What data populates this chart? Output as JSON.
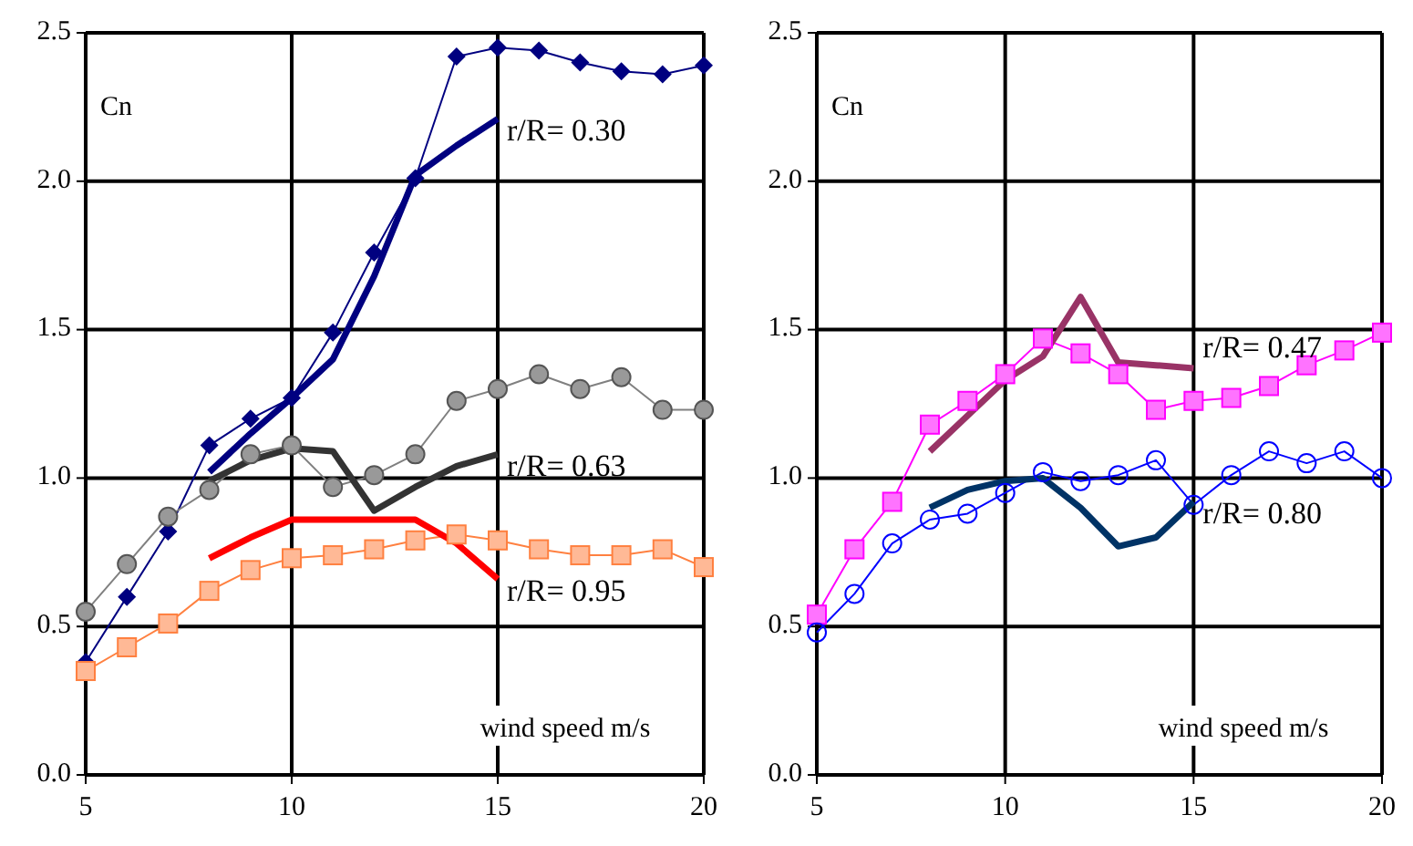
{
  "chart_data": [
    {
      "type": "line",
      "xlabel": "wind speed m/s",
      "ylabel": "Cn",
      "xlim": [
        5,
        20
      ],
      "ylim": [
        0,
        2.5
      ],
      "xticks": [
        5,
        10,
        15,
        20
      ],
      "yticks": [
        {
          "value": 0,
          "label": "0.0"
        },
        {
          "value": 0.5,
          "label": "0.5"
        },
        {
          "value": 1,
          "label": "1.0"
        },
        {
          "value": 1.5,
          "label": "1.5"
        },
        {
          "value": 2,
          "label": "2.0"
        },
        {
          "value": 2.5,
          "label": "2.5"
        }
      ],
      "grid": true,
      "series": [
        {
          "color": "#000080",
          "marker": "diamond",
          "x": [
            5,
            6,
            7,
            8,
            9,
            10,
            11,
            12,
            13,
            14,
            15,
            16,
            17,
            18,
            19,
            20
          ],
          "values": [
            0.38,
            0.6,
            0.82,
            1.11,
            1.2,
            1.27,
            1.49,
            1.76,
            2.01,
            2.42,
            2.45,
            2.44,
            2.4,
            2.37,
            2.36,
            2.39
          ]
        },
        {
          "name": "r/R= 0.30",
          "color": "#000080",
          "marker": "none",
          "x": [
            8,
            9,
            10,
            11,
            12,
            13,
            14,
            15
          ],
          "values": [
            1.02,
            1.15,
            1.27,
            1.4,
            1.68,
            2.02,
            2.12,
            2.21
          ]
        },
        {
          "color": "#808080",
          "marker": "circle",
          "x": [
            5,
            6,
            7,
            8,
            9,
            10,
            11,
            12,
            13,
            14,
            15,
            16,
            17,
            18,
            19,
            20
          ],
          "values": [
            0.55,
            0.71,
            0.87,
            0.96,
            1.08,
            1.11,
            0.97,
            1.01,
            1.08,
            1.26,
            1.3,
            1.35,
            1.3,
            1.34,
            1.23,
            1.23
          ]
        },
        {
          "name": "r/R= 0.63",
          "color": "#333333",
          "marker": "none",
          "x": [
            8,
            9,
            10,
            11,
            12,
            13,
            14,
            15
          ],
          "values": [
            0.99,
            1.06,
            1.1,
            1.09,
            0.89,
            0.97,
            1.04,
            1.08
          ]
        },
        {
          "color": "#ff8040",
          "marker": "square",
          "x": [
            5,
            6,
            7,
            8,
            9,
            10,
            11,
            12,
            13,
            14,
            15,
            16,
            17,
            18,
            19,
            20
          ],
          "values": [
            0.35,
            0.43,
            0.51,
            0.62,
            0.69,
            0.73,
            0.74,
            0.76,
            0.79,
            0.81,
            0.79,
            0.76,
            0.74,
            0.74,
            0.76,
            0.7
          ]
        },
        {
          "name": "r/R= 0.95",
          "color": "#ff0000",
          "marker": "none",
          "x": [
            8,
            9,
            10,
            11,
            12,
            13,
            14,
            15
          ],
          "values": [
            0.73,
            0.8,
            0.86,
            0.86,
            0.86,
            0.86,
            0.78,
            0.66
          ]
        }
      ]
    },
    {
      "type": "line",
      "xlabel": "wind speed m/s",
      "ylabel": "Cn",
      "xlim": [
        5,
        20
      ],
      "ylim": [
        0,
        2.5
      ],
      "xticks": [
        5,
        10,
        15,
        20
      ],
      "yticks": [
        {
          "value": 0,
          "label": "0.0"
        },
        {
          "value": 0.5,
          "label": "0.5"
        },
        {
          "value": 1,
          "label": "1.0"
        },
        {
          "value": 1.5,
          "label": "1.5"
        },
        {
          "value": 2,
          "label": "2.0"
        },
        {
          "value": 2.5,
          "label": "2.5"
        }
      ],
      "grid": true,
      "series": [
        {
          "color": "#ff00ff",
          "marker": "square",
          "x": [
            5,
            6,
            7,
            8,
            9,
            10,
            11,
            12,
            13,
            14,
            15,
            16,
            17,
            18,
            19,
            20
          ],
          "values": [
            0.54,
            0.76,
            0.92,
            1.18,
            1.26,
            1.35,
            1.47,
            1.42,
            1.35,
            1.23,
            1.26,
            1.27,
            1.31,
            1.38,
            1.43,
            1.49
          ]
        },
        {
          "name": "r/R= 0.47",
          "color": "#993366",
          "marker": "none",
          "x": [
            8,
            9,
            10,
            11,
            12,
            13,
            14,
            15
          ],
          "values": [
            1.09,
            1.21,
            1.33,
            1.41,
            1.61,
            1.39,
            1.38,
            1.37
          ]
        },
        {
          "color": "#0000ff",
          "marker": "circle-open",
          "x": [
            5,
            6,
            7,
            8,
            9,
            10,
            11,
            12,
            13,
            14,
            15,
            16,
            17,
            18,
            19,
            20
          ],
          "values": [
            0.48,
            0.61,
            0.78,
            0.86,
            0.88,
            0.95,
            1.02,
            0.99,
            1.01,
            1.06,
            0.91,
            1.01,
            1.09,
            1.05,
            1.09,
            1.0
          ]
        },
        {
          "name": "r/R= 0.80",
          "color": "#003366",
          "marker": "none",
          "x": [
            8,
            9,
            10,
            11,
            12,
            13,
            14,
            15
          ],
          "values": [
            0.9,
            0.96,
            0.99,
            1.0,
            0.9,
            0.77,
            0.8,
            0.92
          ]
        }
      ]
    }
  ]
}
